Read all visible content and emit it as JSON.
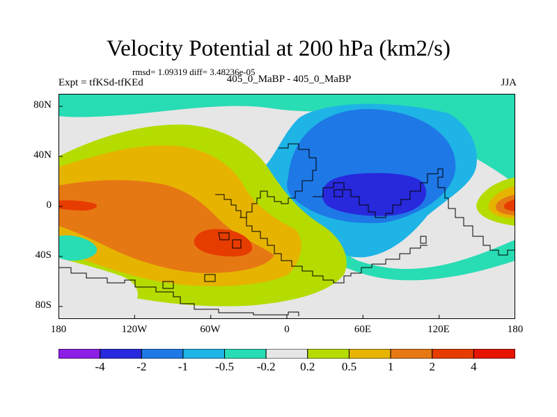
{
  "title": "Velocity Potential at 200 hPa (km2/s)",
  "stats": "rmsd= 1.09319 diff= 3.48236e-05",
  "left_label": "Expt = tfKSd-tfKEd",
  "center_label": "405_0_MaBP - 405_0_MaBP",
  "right_label": "JJA",
  "lat_ticks": [
    "80N",
    "40N",
    "0",
    "40S",
    "80S"
  ],
  "lon_ticks": [
    "180",
    "120W",
    "60W",
    "0",
    "60E",
    "120E",
    "180"
  ],
  "colorbar": {
    "levels": [
      "-4",
      "-2",
      "-1",
      "-0.5",
      "-0.2",
      "0.2",
      "0.5",
      "1",
      "2",
      "4"
    ],
    "colors": [
      "#8c1ee6",
      "#2828dc",
      "#1e78e6",
      "#1eb4e6",
      "#28dcb4",
      "#e6e6e6",
      "#b4dc00",
      "#e6b400",
      "#e67814",
      "#e63c00",
      "#e61400"
    ]
  },
  "fill_colors": {
    "ocean_bg": "#e6e6e6",
    "neg_very_weak": "#28dcb4",
    "neg_weak": "#1eb4e6",
    "neg_mod": "#1e78e6",
    "neg_strong": "#2828dc",
    "pos_weak": "#b4dc00",
    "pos_mod": "#e6b400",
    "pos_strong": "#e67814",
    "pos_very_strong": "#e63c00"
  }
}
